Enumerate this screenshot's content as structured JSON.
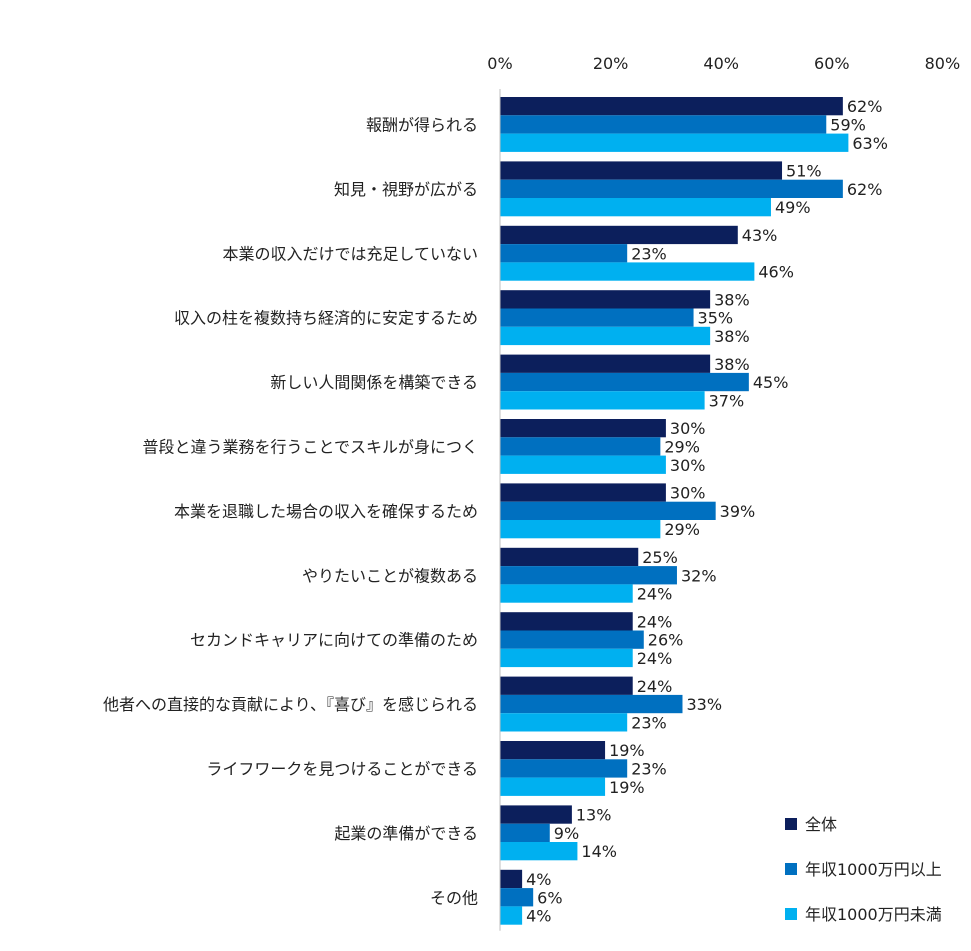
{
  "chart_data": {
    "type": "bar",
    "orientation": "horizontal",
    "title": "",
    "xlabel": "",
    "ylabel": "",
    "xlim": [
      0,
      80
    ],
    "x_ticks": [
      0,
      20,
      40,
      60,
      80
    ],
    "x_tick_labels": [
      "0%",
      "20%",
      "40%",
      "60%",
      "80%"
    ],
    "x_axis_position": "top",
    "grid": false,
    "legend_position": "bottom-right",
    "value_suffix": "%",
    "categories": [
      "報酬が得られる",
      "知見・視野が広がる",
      "本業の収入だけでは充足していない",
      "収入の柱を複数持ち経済的に安定するため",
      "新しい人間関係を構築できる",
      "普段と違う業務を行うことでスキルが身につく",
      "本業を退職した場合の収入を確保するため",
      "やりたいことが複数ある",
      "セカンドキャリアに向けての準備のため",
      "他者への直接的な貢献により、『喜び』を感じられる",
      "ライフワークを見つけることができる",
      "起業の準備ができる",
      "その他"
    ],
    "series": [
      {
        "name": "全体",
        "color": "#0c1f5c",
        "values": [
          62,
          51,
          43,
          38,
          38,
          30,
          30,
          25,
          24,
          24,
          19,
          13,
          4
        ]
      },
      {
        "name": "年収1000万円以上",
        "color": "#0070c0",
        "values": [
          59,
          62,
          23,
          35,
          45,
          29,
          39,
          32,
          26,
          33,
          23,
          9,
          6
        ]
      },
      {
        "name": "年収1000万円未満",
        "color": "#00b0f0",
        "values": [
          63,
          49,
          46,
          38,
          37,
          30,
          29,
          24,
          24,
          23,
          19,
          14,
          4
        ]
      }
    ]
  }
}
